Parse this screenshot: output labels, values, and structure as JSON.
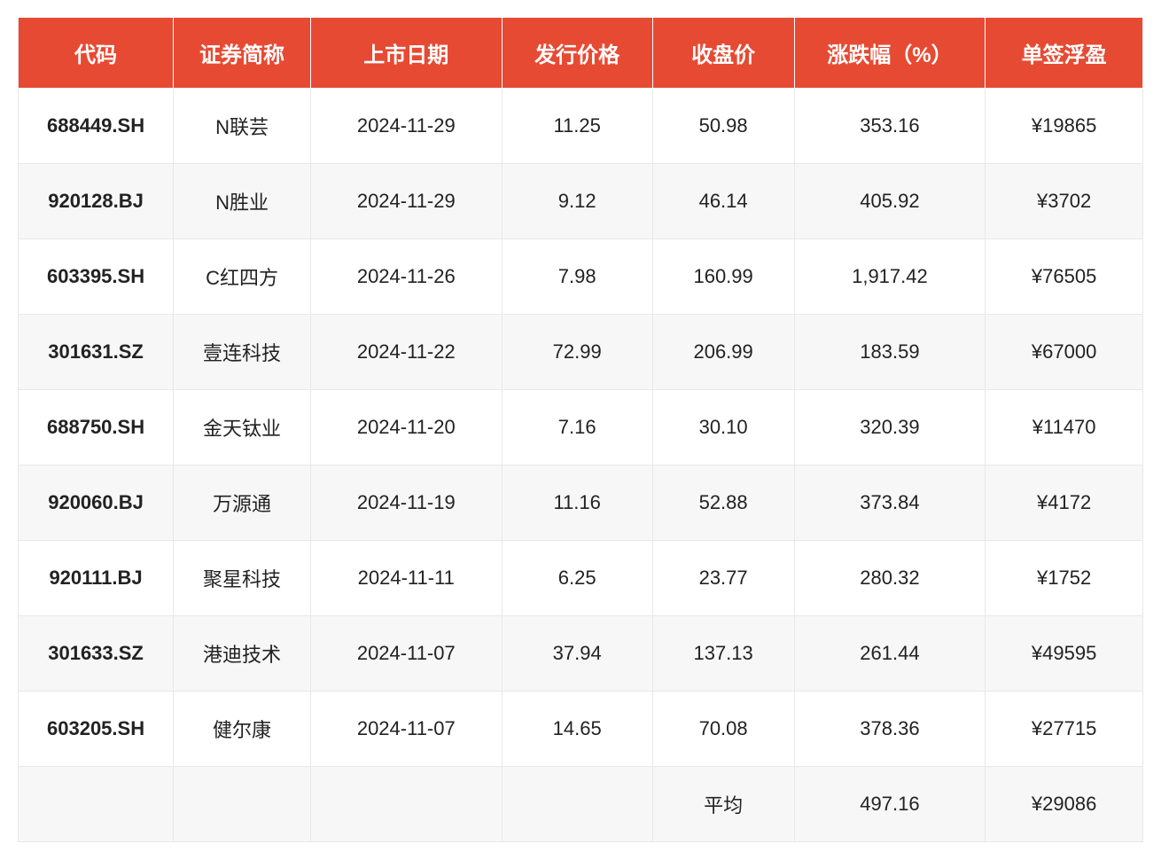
{
  "table": {
    "type": "table",
    "header_bg_color": "#e74a33",
    "header_text_color": "#ffffff",
    "header_font_size": 24,
    "header_font_weight": 700,
    "body_font_size": 22,
    "body_text_color": "#222222",
    "row_bg_even": "#f7f7f7",
    "row_bg_odd": "#ffffff",
    "border_color": "#e8e8e8",
    "first_col_font_weight": 700,
    "columns": [
      {
        "label": "代码",
        "width_pct": 13.8,
        "align": "center"
      },
      {
        "label": "证券简称",
        "width_pct": 12.2,
        "align": "center"
      },
      {
        "label": "上市日期",
        "width_pct": 17.0,
        "align": "center"
      },
      {
        "label": "发行价格",
        "width_pct": 13.4,
        "align": "center"
      },
      {
        "label": "收盘价",
        "width_pct": 12.6,
        "align": "center"
      },
      {
        "label": "涨跌幅（%）",
        "width_pct": 17.0,
        "align": "center"
      },
      {
        "label": "单签浮盈",
        "width_pct": 14.0,
        "align": "center"
      }
    ],
    "rows": [
      [
        "688449.SH",
        "N联芸",
        "2024-11-29",
        "11.25",
        "50.98",
        "353.16",
        "¥19865"
      ],
      [
        "920128.BJ",
        "N胜业",
        "2024-11-29",
        "9.12",
        "46.14",
        "405.92",
        "¥3702"
      ],
      [
        "603395.SH",
        "C红四方",
        "2024-11-26",
        "7.98",
        "160.99",
        "1,917.42",
        "¥76505"
      ],
      [
        "301631.SZ",
        "壹连科技",
        "2024-11-22",
        "72.99",
        "206.99",
        "183.59",
        "¥67000"
      ],
      [
        "688750.SH",
        "金天钛业",
        "2024-11-20",
        "7.16",
        "30.10",
        "320.39",
        "¥11470"
      ],
      [
        "920060.BJ",
        "万源通",
        "2024-11-19",
        "11.16",
        "52.88",
        "373.84",
        "¥4172"
      ],
      [
        "920111.BJ",
        "聚星科技",
        "2024-11-11",
        "6.25",
        "23.77",
        "280.32",
        "¥1752"
      ],
      [
        "301633.SZ",
        "港迪技术",
        "2024-11-07",
        "37.94",
        "137.13",
        "261.44",
        "¥49595"
      ],
      [
        "603205.SH",
        "健尔康",
        "2024-11-07",
        "14.65",
        "70.08",
        "378.36",
        "¥27715"
      ],
      [
        "",
        "",
        "",
        "",
        "平均",
        "497.16",
        "¥29086"
      ]
    ]
  }
}
